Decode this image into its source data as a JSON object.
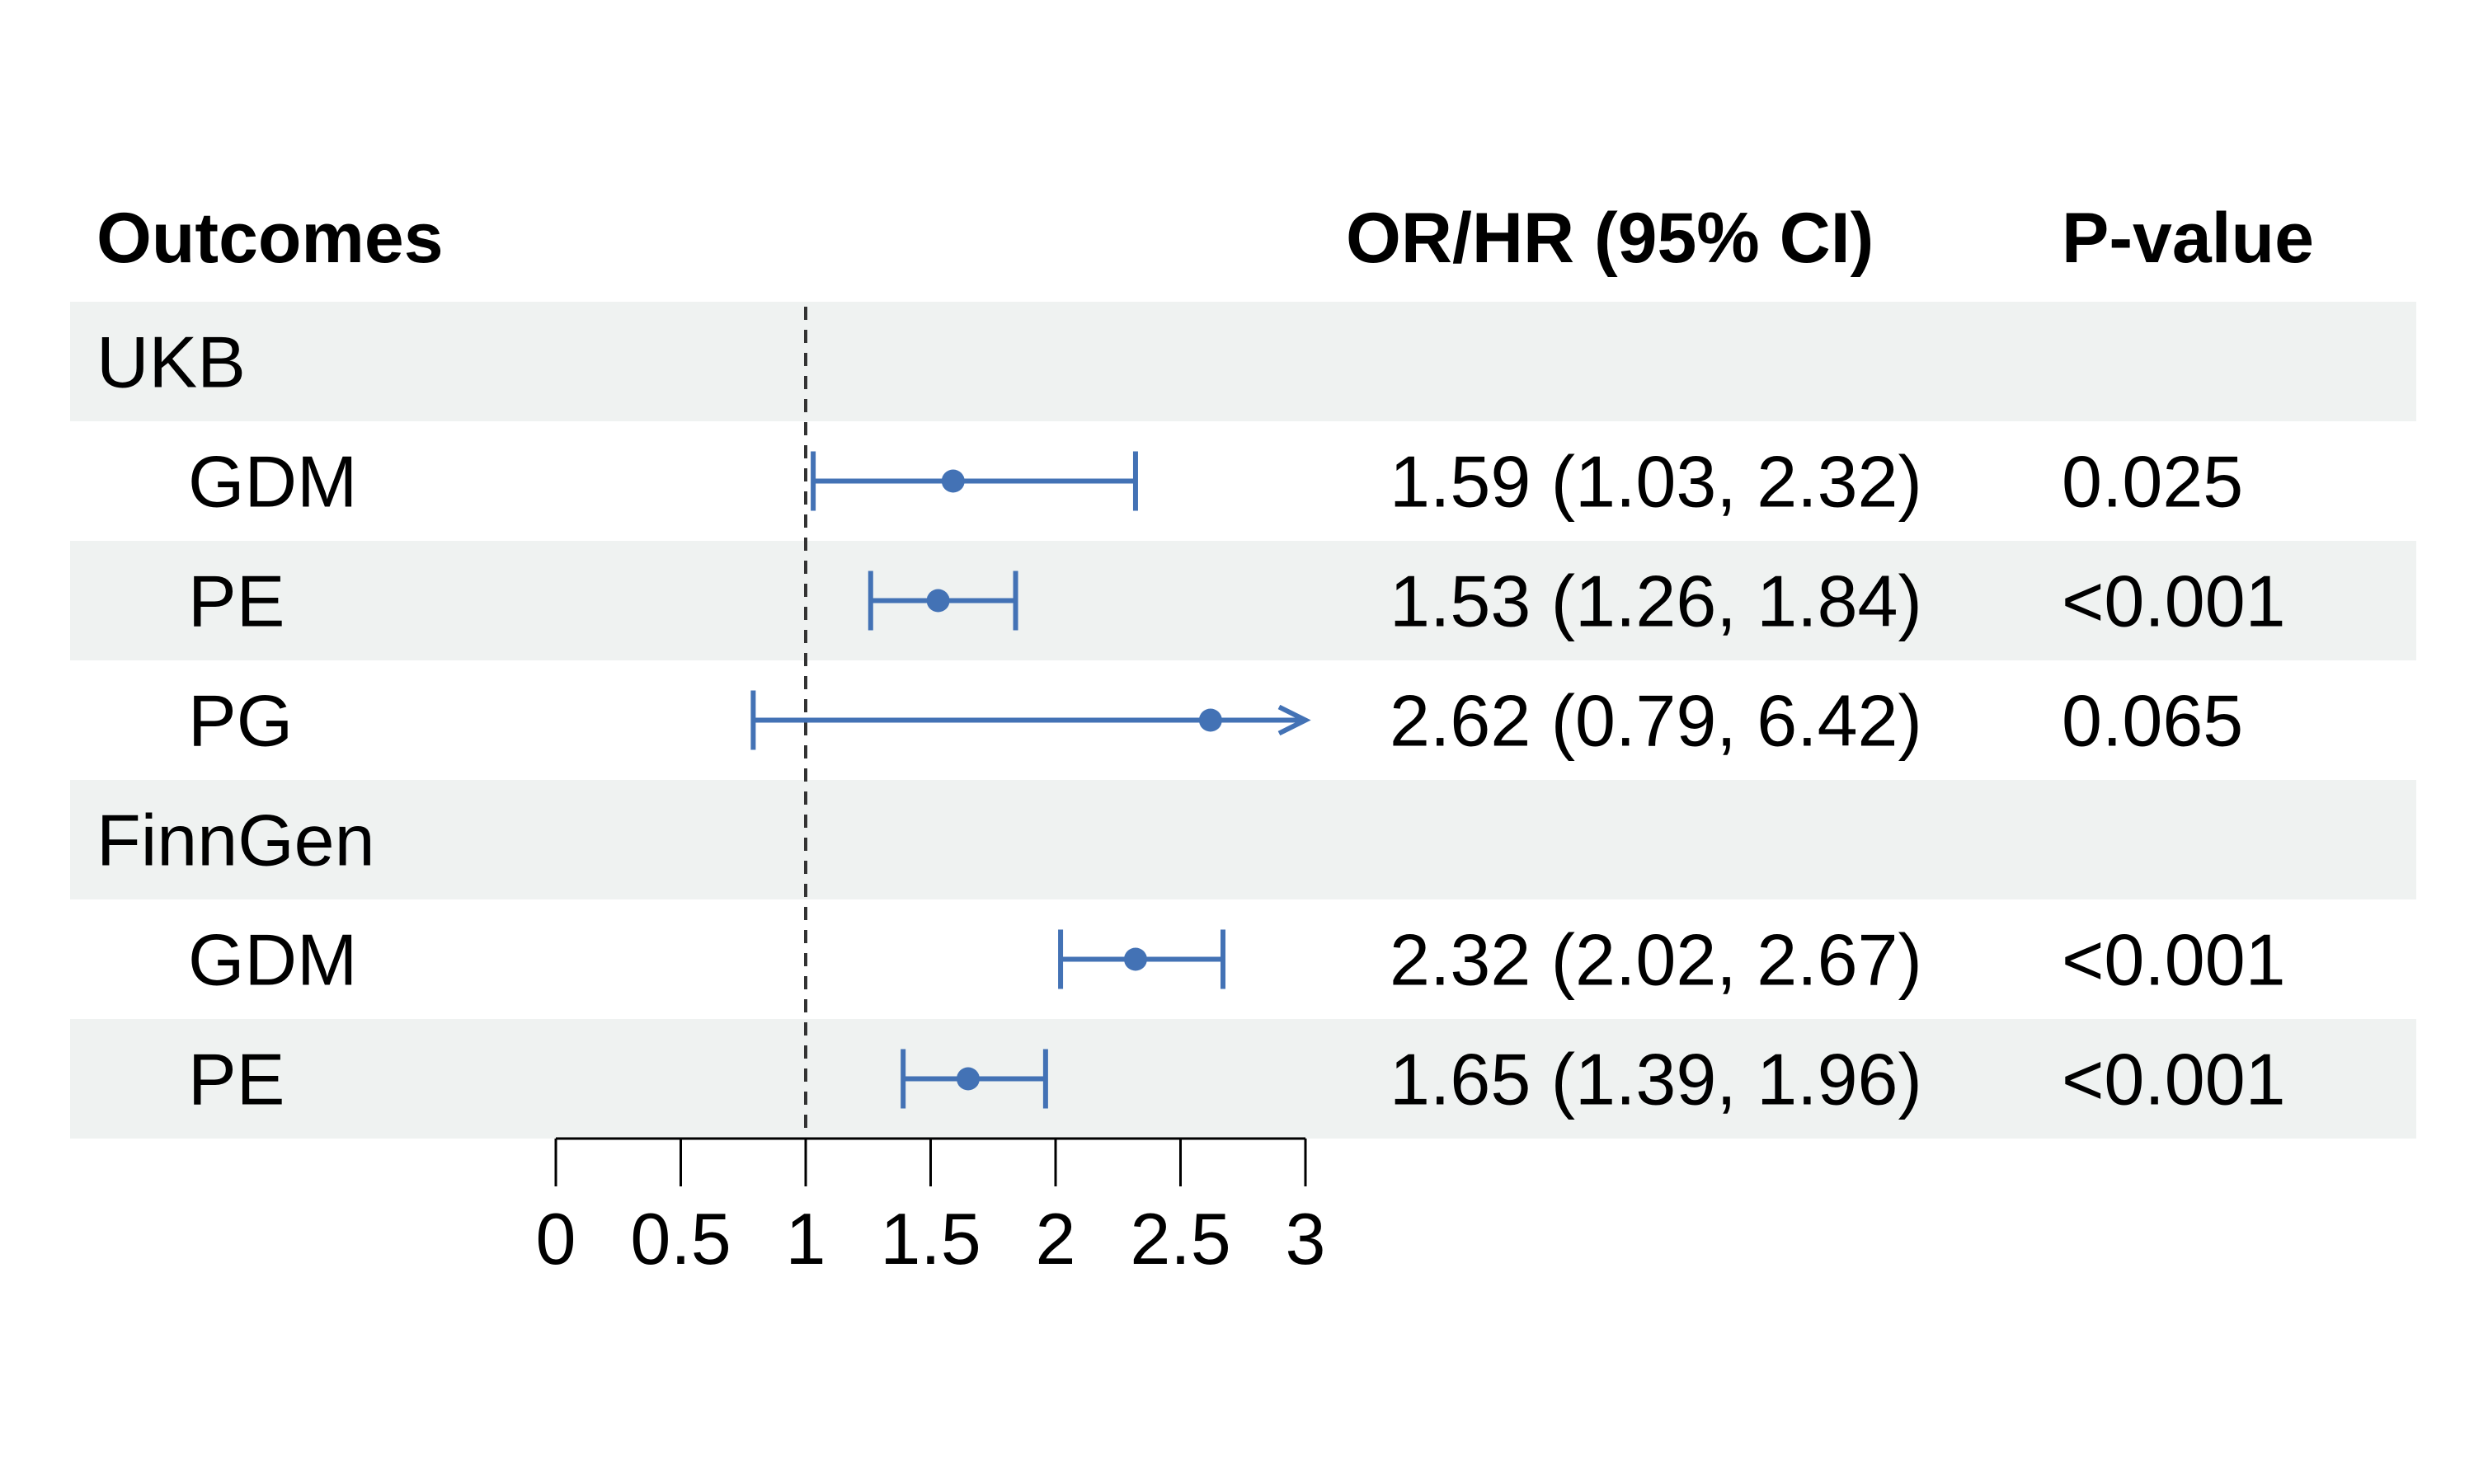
{
  "headers": {
    "outcomes": "Outcomes",
    "estimate": "OR/HR (95% CI)",
    "pvalue": "P-value"
  },
  "colors": {
    "series": "#4372b5",
    "stripe": "#eff2f1",
    "reference_line": "#333333"
  },
  "chart_data": {
    "type": "forest",
    "reference_value": 1,
    "xlim": [
      0,
      3
    ],
    "x_ticks": [
      "0",
      "0.5",
      "1",
      "1.5",
      "2",
      "2.5",
      "3"
    ],
    "x_tick_values": [
      0,
      0.5,
      1,
      1.5,
      2,
      2.5,
      3
    ],
    "rows": [
      {
        "kind": "group",
        "label": "UKB",
        "shaded": true
      },
      {
        "kind": "item",
        "label": "GDM",
        "est": 1.59,
        "lo": 1.03,
        "hi": 2.32,
        "ci_text": "1.59 (1.03, 2.32)",
        "p": "0.025",
        "shaded": false
      },
      {
        "kind": "item",
        "label": "PE",
        "est": 1.53,
        "lo": 1.26,
        "hi": 1.84,
        "ci_text": "1.53 (1.26, 1.84)",
        "p": "<0.001",
        "shaded": true
      },
      {
        "kind": "item",
        "label": "PG",
        "est": 2.62,
        "lo": 0.79,
        "hi": 6.42,
        "ci_text": "2.62 (0.79, 6.42)",
        "p": "0.065",
        "shaded": false
      },
      {
        "kind": "group",
        "label": "FinnGen",
        "shaded": true
      },
      {
        "kind": "item",
        "label": "GDM",
        "est": 2.32,
        "lo": 2.02,
        "hi": 2.67,
        "ci_text": "2.32 (2.02, 2.67)",
        "p": "<0.001",
        "shaded": false
      },
      {
        "kind": "item",
        "label": "PE",
        "est": 1.65,
        "lo": 1.39,
        "hi": 1.96,
        "ci_text": "1.65 (1.39, 1.96)",
        "p": "<0.001",
        "shaded": true
      }
    ]
  }
}
